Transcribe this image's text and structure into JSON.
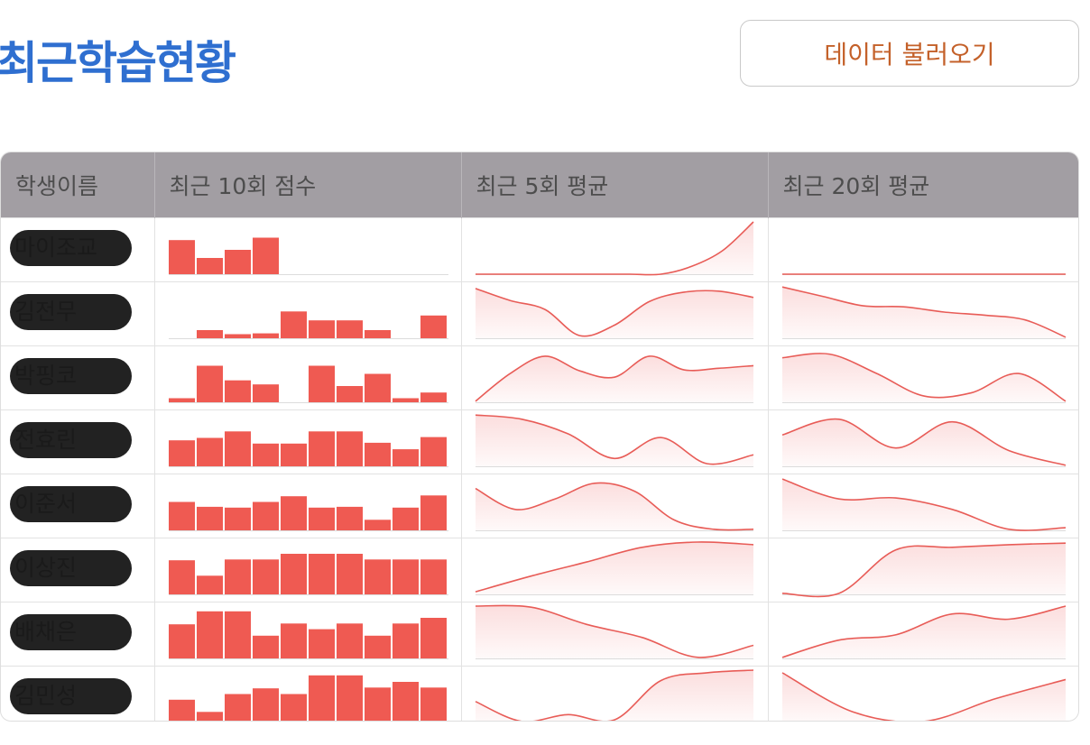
{
  "header": {
    "title": "최근학습현황",
    "load_button_label": "데이터 불러오기"
  },
  "table": {
    "columns": [
      "학생이름",
      "최근 10회 점수",
      "최근 5회 평균",
      "최근 20회 평균"
    ],
    "colors": {
      "bar": "#ef5a52",
      "line": "#e85c57",
      "area": "#fbdada",
      "baseline": "#dcdcdc"
    }
  },
  "chart_data": [
    {
      "type": "table",
      "rows": [
        {
          "name": "마이조교",
          "scores": [
            42,
            20,
            30,
            45,
            0,
            0,
            0,
            0,
            0,
            0
          ],
          "avg5": [
            0,
            0,
            0,
            0,
            0,
            0,
            0,
            0.15,
            0.45,
            1.0
          ],
          "avg20": [
            0,
            0,
            0,
            0,
            0,
            0,
            0,
            0,
            0,
            0
          ]
        },
        {
          "name": "김전무",
          "scores": [
            0,
            10,
            5,
            6,
            33,
            22,
            22,
            10,
            0,
            28
          ],
          "avg5": [
            0.95,
            0.72,
            0.55,
            0.05,
            0.25,
            0.7,
            0.88,
            0.9,
            0.78
          ],
          "avg20": [
            0.98,
            0.8,
            0.62,
            0.6,
            0.5,
            0.44,
            0.35,
            0.02
          ]
        },
        {
          "name": "박핑코",
          "scores": [
            5,
            45,
            27,
            22,
            0,
            45,
            20,
            35,
            5,
            12
          ],
          "avg5": [
            0.02,
            0.55,
            0.88,
            0.6,
            0.48,
            0.88,
            0.62,
            0.65,
            0.7
          ],
          "avg20": [
            0.85,
            0.92,
            0.55,
            0.12,
            0.18,
            0.55,
            0.02
          ]
        },
        {
          "name": "전효린",
          "scores": [
            32,
            35,
            43,
            28,
            28,
            43,
            43,
            29,
            21,
            36
          ],
          "avg5": [
            0.98,
            0.9,
            0.62,
            0.15,
            0.55,
            0.05,
            0.22
          ],
          "avg20": [
            0.6,
            0.9,
            0.35,
            0.85,
            0.3,
            0.02
          ]
        },
        {
          "name": "이준서",
          "scores": [
            35,
            29,
            28,
            35,
            42,
            28,
            29,
            13,
            28,
            43
          ],
          "avg5": [
            0.8,
            0.4,
            0.6,
            0.9,
            0.75,
            0.2,
            0.02,
            0.02
          ],
          "avg20": [
            0.98,
            0.6,
            0.62,
            0.4,
            0.02,
            0.05
          ]
        },
        {
          "name": "이상진",
          "scores": [
            42,
            23,
            43,
            43,
            50,
            50,
            50,
            43,
            43,
            43
          ],
          "avg5": [
            0.05,
            0.35,
            0.62,
            0.9,
            1.0,
            0.95
          ],
          "avg20": [
            0.02,
            0.02,
            0.85,
            0.9,
            0.95,
            0.98
          ]
        },
        {
          "name": "배채은",
          "scores": [
            42,
            58,
            58,
            28,
            43,
            36,
            43,
            28,
            43,
            50
          ],
          "avg5": [
            1.0,
            0.98,
            0.65,
            0.4,
            0.02,
            0.25
          ],
          "avg20": [
            0.02,
            0.35,
            0.45,
            0.85,
            0.75,
            1.0
          ]
        },
        {
          "name": "김민성",
          "scores": [
            28,
            13,
            35,
            42,
            35,
            58,
            58,
            43,
            50,
            43
          ],
          "avg5": [
            0.4,
            0.02,
            0.15,
            0.05,
            0.8,
            0.95,
            1.0
          ],
          "avg20": [
            0.95,
            0.2,
            0.02,
            0.45,
            0.82
          ]
        }
      ]
    }
  ]
}
